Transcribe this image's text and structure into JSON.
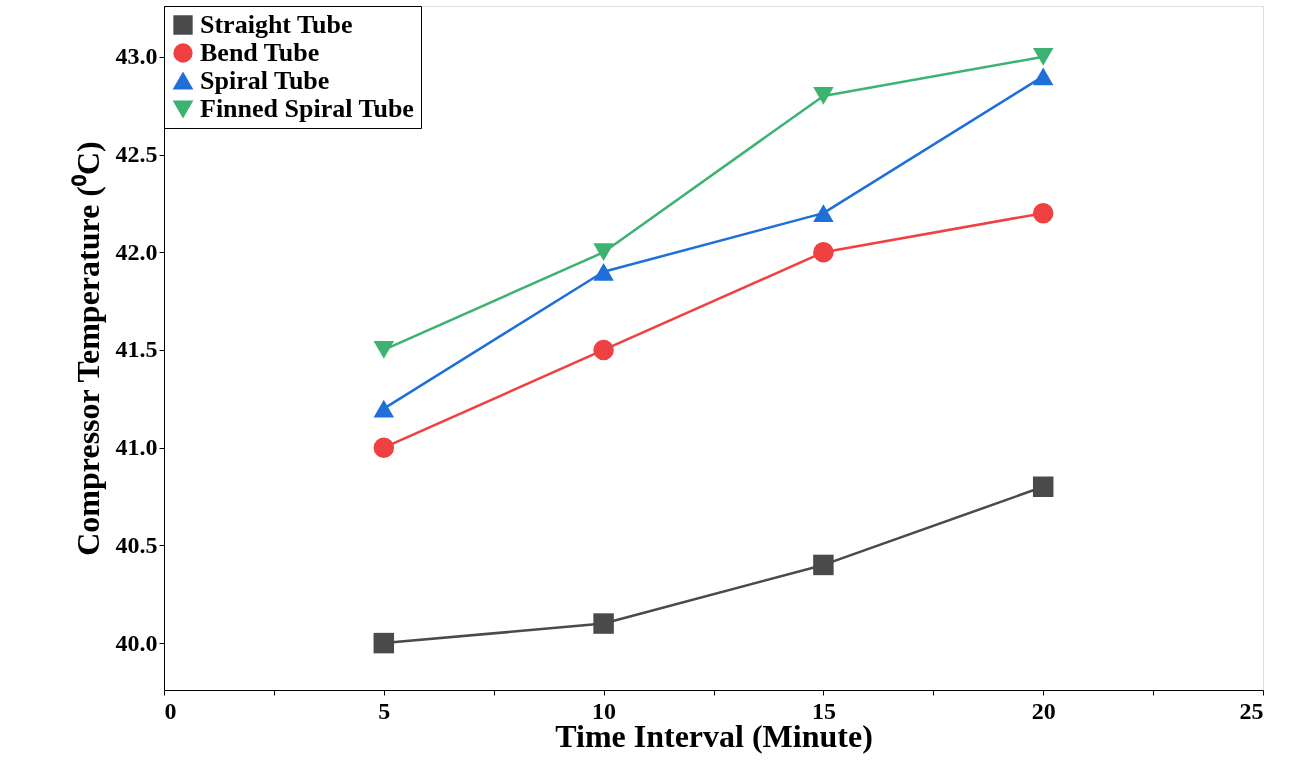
{
  "chart_data": {
    "type": "line",
    "xlabel": "Time Interval (Minute)",
    "ylabel": "Compressor Temperature (⁰C)",
    "x": [
      5,
      10,
      15,
      20
    ],
    "series": [
      {
        "name": "Straight Tube",
        "color": "#4a4a4a",
        "marker": "square",
        "values": [
          40.0,
          40.1,
          40.4,
          40.8
        ]
      },
      {
        "name": "Bend Tube",
        "color": "#ef4141",
        "marker": "circle",
        "values": [
          41.0,
          41.5,
          42.0,
          42.2
        ]
      },
      {
        "name": "Spiral Tube",
        "color": "#1f6fd9",
        "marker": "triangle",
        "values": [
          41.2,
          41.9,
          42.2,
          42.9
        ]
      },
      {
        "name": "Finned Spiral Tube",
        "color": "#3cb371",
        "marker": "triangle-down",
        "values": [
          41.5,
          42.0,
          42.8,
          43.0
        ]
      }
    ],
    "xlim": [
      0,
      25
    ],
    "xticks": [
      0,
      {
        "value": 2.5,
        "label": null
      },
      5,
      {
        "value": 7.5,
        "label": null
      },
      10,
      {
        "value": 12.5,
        "label": null
      },
      15,
      {
        "value": 17.5,
        "label": null
      },
      20,
      {
        "value": 22.5,
        "label": null
      },
      25
    ],
    "ylim": [
      39.76,
      43.26
    ],
    "yticks": [
      {
        "value": 40.0,
        "label": "40.0"
      },
      {
        "value": 40.5,
        "label": "40.5"
      },
      {
        "value": 41.0,
        "label": "41.0"
      },
      {
        "value": 41.5,
        "label": "41.5"
      },
      {
        "value": 42.0,
        "label": "42.0"
      },
      {
        "value": 42.5,
        "label": "42.5"
      },
      {
        "value": 43.0,
        "label": "43.0"
      }
    ],
    "legend": "top left",
    "grid": false,
    "line_style": "solid"
  }
}
